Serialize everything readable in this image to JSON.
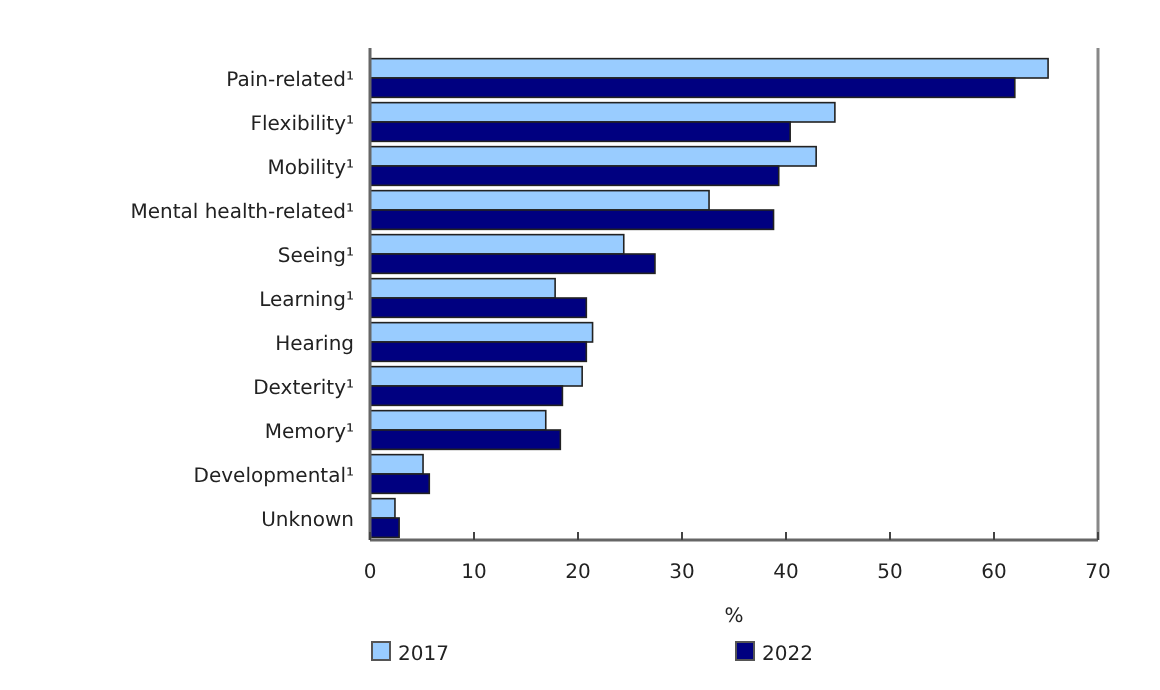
{
  "chart_data": {
    "type": "bar",
    "orientation": "horizontal",
    "xlabel": "%",
    "categories": [
      "Pain-related¹",
      "Flexibility¹",
      "Mobility¹",
      "Mental health-related¹",
      "Seeing¹",
      "Learning¹",
      "Hearing",
      "Dexterity¹",
      "Memory¹",
      "Developmental¹",
      "Unknown"
    ],
    "series": [
      {
        "name": "2017",
        "color": "#99ccff",
        "values": [
          65.2,
          44.7,
          42.9,
          32.6,
          24.4,
          17.8,
          21.4,
          20.4,
          16.9,
          5.1,
          2.4
        ]
      },
      {
        "name": "2022",
        "color": "#000080",
        "values": [
          62.0,
          40.4,
          39.3,
          38.8,
          27.4,
          20.8,
          20.8,
          18.5,
          18.3,
          5.7,
          2.8
        ]
      }
    ],
    "xlim": [
      0,
      70
    ],
    "xticks": [
      0,
      10,
      20,
      30,
      40,
      50,
      60,
      70
    ],
    "grid": false,
    "legend": "bottom"
  }
}
